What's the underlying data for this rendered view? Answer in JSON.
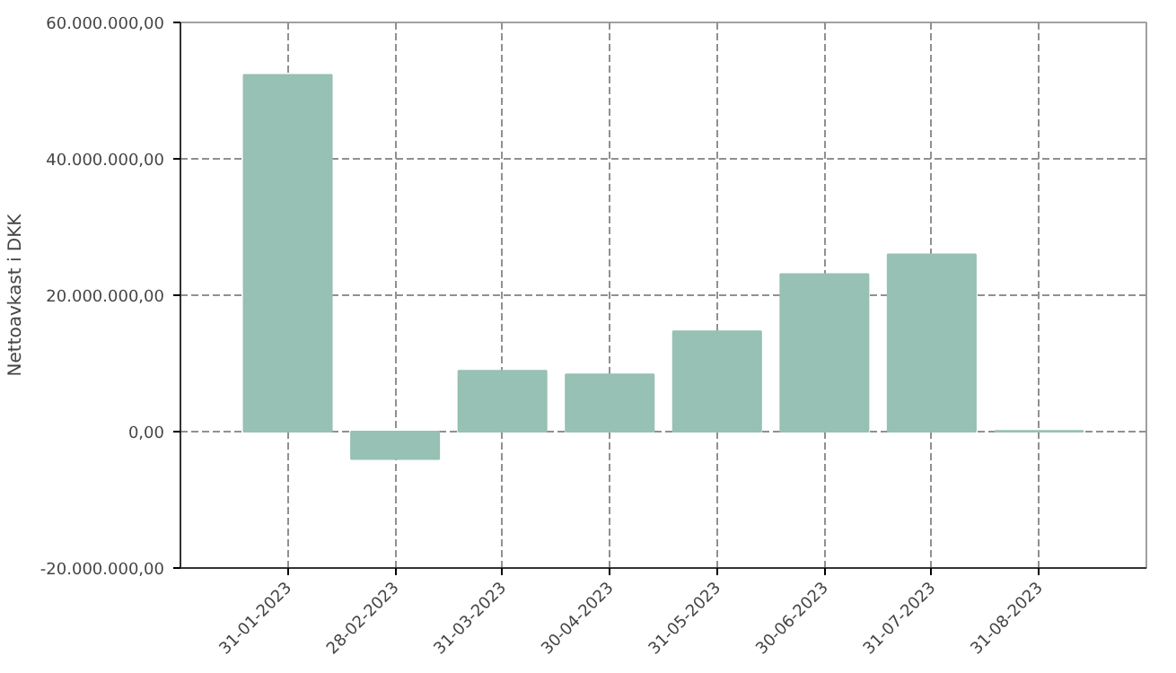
{
  "chart_data": {
    "type": "bar",
    "ylabel": "Nettoavkast i DKK",
    "categories": [
      "31-01-2023",
      "28-02-2023",
      "31-03-2023",
      "30-04-2023",
      "31-05-2023",
      "30-06-2023",
      "31-07-2023",
      "31-08-2023"
    ],
    "values": [
      52300000,
      -4000000,
      8900000,
      8400000,
      14700000,
      23100000,
      26000000,
      100000
    ],
    "color": "#96c1b4",
    "ylim": [
      -20000000,
      60000000
    ],
    "yticks": [
      {
        "value": -20000000,
        "label": "-20.000.000,00"
      },
      {
        "value": 0,
        "label": "0,00"
      },
      {
        "value": 20000000,
        "label": "20.000.000,00"
      },
      {
        "value": 40000000,
        "label": "40.000.000,00"
      },
      {
        "value": 60000000,
        "label": "60.000.000,00"
      }
    ],
    "grid": true
  }
}
